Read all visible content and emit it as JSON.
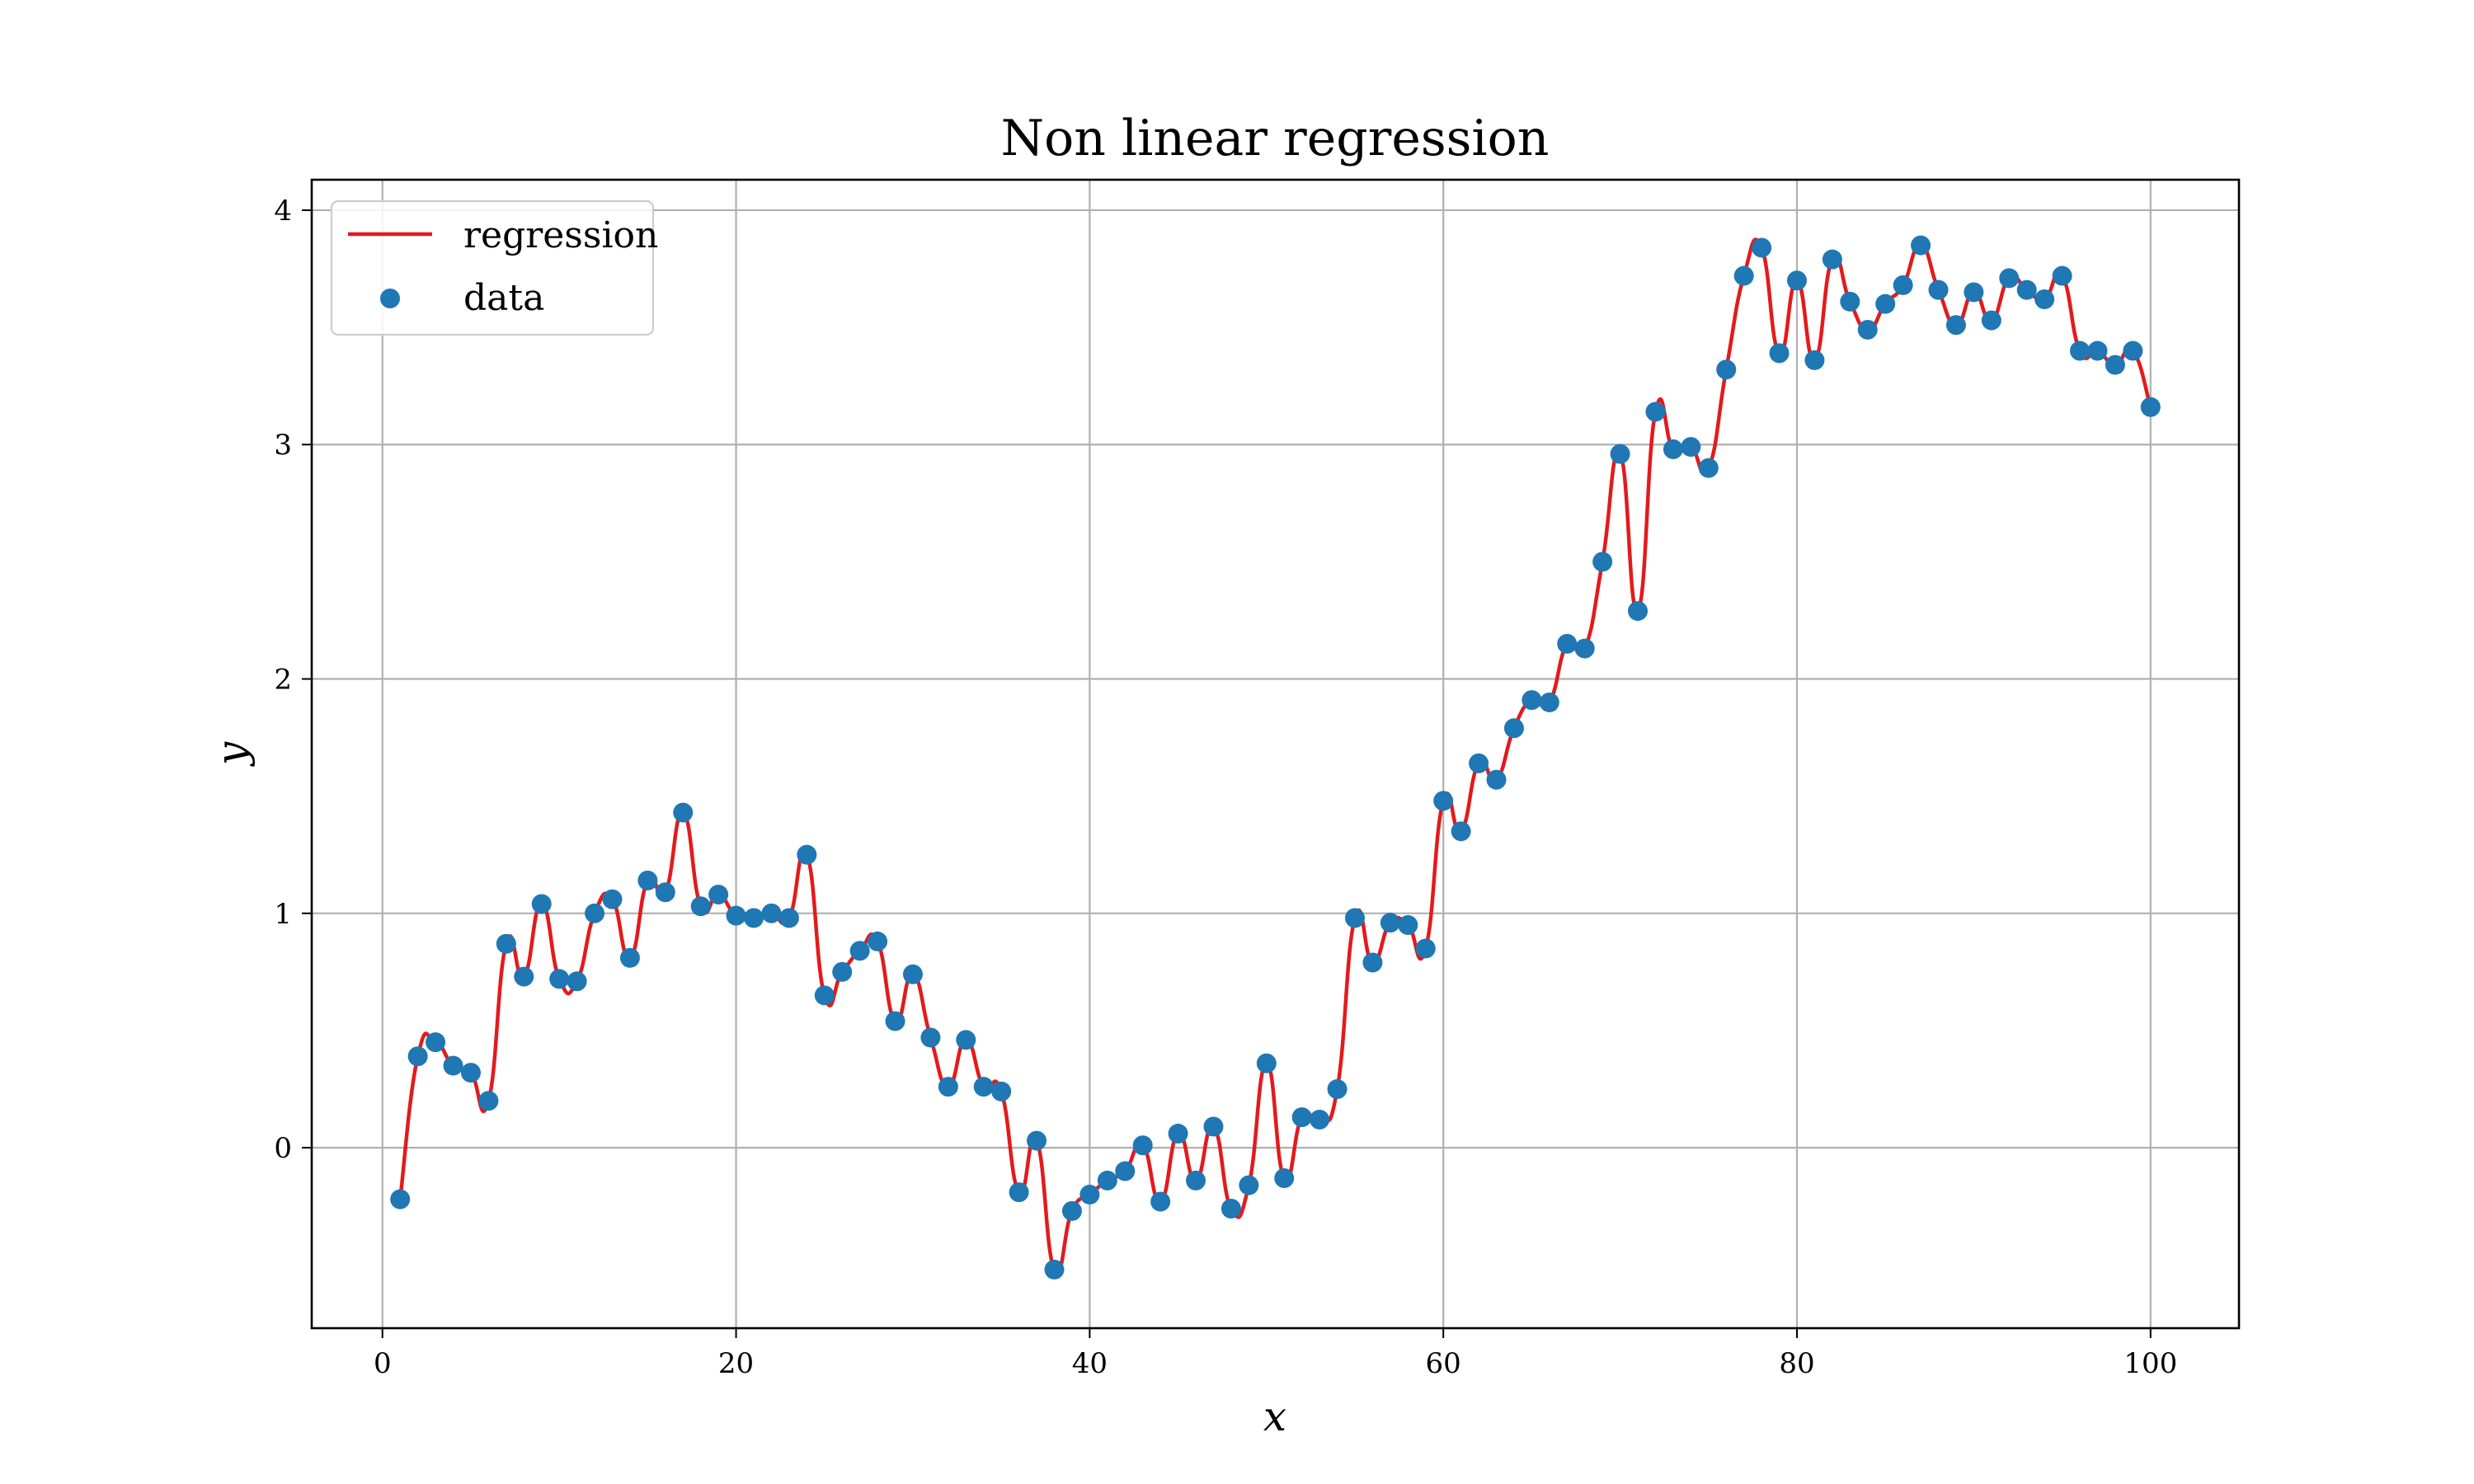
{
  "chart_data": {
    "type": "scatter",
    "title": "Non linear regression",
    "xlabel": "x",
    "ylabel": "y",
    "xlim": [
      -4,
      105
    ],
    "ylim": [
      -0.77,
      4.13
    ],
    "xticks": [
      0,
      20,
      40,
      60,
      80,
      100
    ],
    "yticks": [
      0,
      1,
      2,
      3,
      4
    ],
    "grid": true,
    "legend_position": "top-left",
    "series": [
      {
        "name": "regression",
        "kind": "line",
        "color": "#e31a1c"
      },
      {
        "name": "data",
        "kind": "scatter",
        "color": "#1f77b4",
        "x": [
          1,
          2,
          3,
          4,
          5,
          6,
          7,
          8,
          9,
          10,
          11,
          12,
          13,
          14,
          15,
          16,
          17,
          18,
          19,
          20,
          21,
          22,
          23,
          24,
          25,
          26,
          27,
          28,
          29,
          30,
          31,
          32,
          33,
          34,
          35,
          36,
          37,
          38,
          39,
          40,
          41,
          42,
          43,
          44,
          45,
          46,
          47,
          48,
          49,
          50,
          51,
          52,
          53,
          54,
          55,
          56,
          57,
          58,
          59,
          60,
          61,
          62,
          63,
          64,
          65,
          66,
          67,
          68,
          69,
          70,
          71,
          72,
          73,
          74,
          75,
          76,
          77,
          78,
          79,
          80,
          81,
          82,
          83,
          84,
          85,
          86,
          87,
          88,
          89,
          90,
          91,
          92,
          93,
          94,
          95,
          96,
          97,
          98,
          99,
          100
        ],
        "y": [
          -0.22,
          0.39,
          0.45,
          0.35,
          0.32,
          0.2,
          0.87,
          0.73,
          1.04,
          0.72,
          0.71,
          1.0,
          1.06,
          0.81,
          1.14,
          1.09,
          1.43,
          1.03,
          1.08,
          0.99,
          0.98,
          1.0,
          0.98,
          1.25,
          0.65,
          0.75,
          0.84,
          0.88,
          0.54,
          0.74,
          0.47,
          0.26,
          0.46,
          0.26,
          0.24,
          -0.19,
          0.03,
          -0.52,
          -0.27,
          -0.2,
          -0.14,
          -0.1,
          0.01,
          -0.23,
          0.06,
          -0.14,
          0.09,
          -0.26,
          -0.16,
          0.36,
          -0.13,
          0.13,
          0.12,
          0.25,
          0.98,
          0.79,
          0.96,
          0.95,
          0.85,
          1.48,
          1.35,
          1.64,
          1.57,
          1.79,
          1.91,
          1.9,
          2.15,
          2.13,
          2.5,
          2.96,
          2.29,
          3.14,
          2.98,
          2.99,
          2.9,
          3.32,
          3.72,
          3.84,
          3.39,
          3.7,
          3.36,
          3.79,
          3.61,
          3.49,
          3.6,
          3.68,
          3.85,
          3.66,
          3.51,
          3.65,
          3.53,
          3.71,
          3.66,
          3.62,
          3.72,
          3.4,
          3.4,
          3.34,
          3.4,
          3.16
        ]
      }
    ]
  }
}
